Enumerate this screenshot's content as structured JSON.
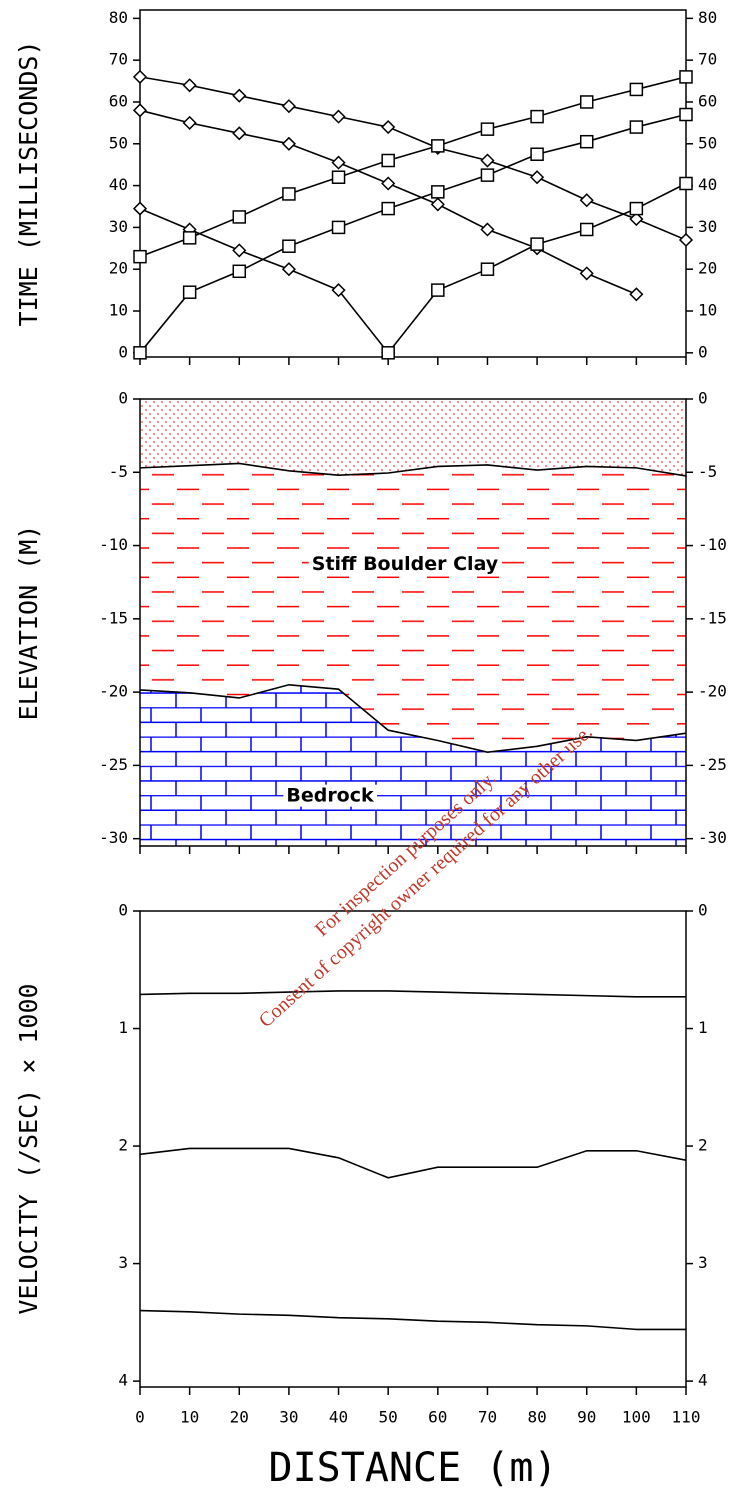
{
  "chart_data": [
    {
      "type": "line",
      "ylabel": "TIME (MILLISECONDS)",
      "x": [
        0,
        10,
        20,
        30,
        40,
        50,
        60,
        70,
        80,
        90,
        100,
        110
      ],
      "xlim": [
        0,
        110
      ],
      "ylim": [
        -1,
        82
      ],
      "yticks": [
        0,
        10,
        20,
        30,
        40,
        50,
        60,
        70,
        80
      ],
      "series": [
        {
          "marker": "diamond",
          "color": "#000000",
          "values": [
            66,
            64,
            61.5,
            59,
            56.5,
            54,
            49,
            46,
            42,
            36.5,
            32,
            27
          ]
        },
        {
          "marker": "diamond",
          "color": "#000000",
          "values": [
            58,
            55,
            52.5,
            50,
            45.5,
            40.5,
            35.5,
            29.5,
            25,
            19,
            14,
            null
          ]
        },
        {
          "marker": "diamond",
          "color": "#000000",
          "values": [
            34.5,
            29.5,
            24.5,
            20,
            15,
            0,
            null,
            null,
            null,
            null,
            null,
            null
          ]
        },
        {
          "marker": "square",
          "color": "#000000",
          "values": [
            23,
            27.5,
            32.5,
            38,
            42,
            46,
            49.5,
            53.5,
            56.5,
            60,
            63,
            66
          ]
        },
        {
          "marker": "square",
          "color": "#000000",
          "values": [
            0,
            14.5,
            19.5,
            25.5,
            30,
            34.5,
            38.5,
            42.5,
            47.5,
            50.5,
            54,
            57
          ]
        },
        {
          "marker": "square",
          "color": "#000000",
          "values": [
            null,
            null,
            null,
            null,
            null,
            0,
            15,
            20,
            26,
            29.5,
            34.5,
            40.5
          ]
        }
      ]
    },
    {
      "type": "layers",
      "ylabel": "ELEVATION (M)",
      "x": [
        0,
        10,
        20,
        30,
        40,
        50,
        60,
        70,
        80,
        90,
        100,
        110
      ],
      "xlim": [
        0,
        110
      ],
      "ylim": [
        -30.5,
        0
      ],
      "yticks": [
        0,
        -5,
        -10,
        -15,
        -20,
        -25,
        -30
      ],
      "series": [
        {
          "color": "#000000",
          "values": [
            -4.7,
            -4.55,
            -4.4,
            -4.9,
            -5.2,
            -5.05,
            -4.6,
            -4.5,
            -4.85,
            -4.6,
            -4.7,
            -5.25
          ]
        },
        {
          "color": "#000000",
          "values": [
            -19.85,
            -20.05,
            -20.4,
            -19.5,
            -19.8,
            -22.6,
            -23.3,
            -24.1,
            -23.7,
            -23.05,
            -23.3,
            -22.8
          ]
        }
      ],
      "layers": [
        {
          "pattern": "dots",
          "color": "#ff0000"
        },
        {
          "pattern": "dashes",
          "color": "#ff0000"
        },
        {
          "pattern": "bricks",
          "color": "#0000ff"
        }
      ],
      "annotations": [
        "Stiff Boulder Clay",
        "Bedrock"
      ]
    },
    {
      "type": "line",
      "ylabel": "VELOCITY (/SEC) × 1000",
      "xlabel": "DISTANCE (m)",
      "x": [
        0,
        10,
        20,
        30,
        40,
        50,
        60,
        70,
        80,
        90,
        100,
        110
      ],
      "xlim": [
        0,
        110
      ],
      "xticks": [
        0,
        10,
        20,
        30,
        40,
        50,
        60,
        70,
        80,
        90,
        100,
        110
      ],
      "ylim": [
        0,
        4.05
      ],
      "inverted": true,
      "yticks": [
        0,
        1,
        2,
        3,
        4
      ],
      "series": [
        {
          "color": "#000000",
          "values": [
            0.71,
            0.7,
            0.7,
            0.69,
            0.68,
            0.68,
            0.69,
            0.7,
            0.71,
            0.72,
            0.73,
            0.73
          ]
        },
        {
          "color": "#000000",
          "values": [
            2.07,
            2.02,
            2.02,
            2.02,
            2.1,
            2.27,
            2.18,
            2.18,
            2.18,
            2.04,
            2.04,
            2.12
          ]
        },
        {
          "color": "#000000",
          "values": [
            3.4,
            3.41,
            3.43,
            3.44,
            3.46,
            3.47,
            3.49,
            3.5,
            3.52,
            3.53,
            3.56,
            3.56
          ]
        }
      ]
    }
  ],
  "watermark": [
    "For inspection purposes only.",
    "Consent of copyright owner required for any other use."
  ]
}
